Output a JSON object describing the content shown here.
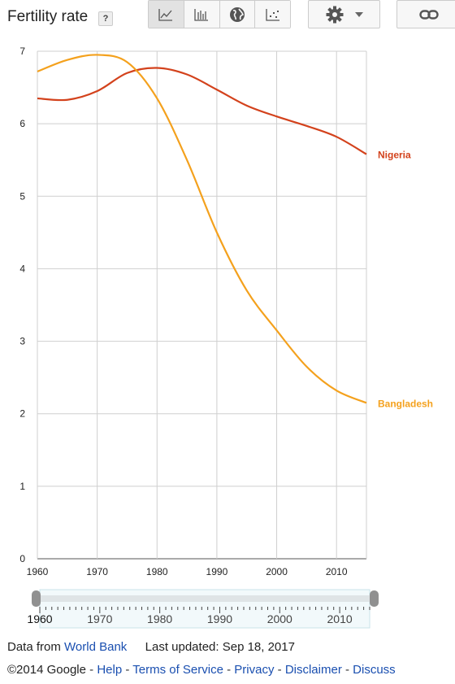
{
  "header": {
    "title": "Fertility rate",
    "help_label": "?",
    "view_buttons": [
      {
        "icon": "line-chart-icon"
      },
      {
        "icon": "bar-chart-icon"
      },
      {
        "icon": "globe-map-icon"
      },
      {
        "icon": "scatter-chart-icon"
      }
    ],
    "settings_icon": "gear-icon",
    "dropdown_icon": "caret-down-icon",
    "link_icon": "link-icon"
  },
  "chart_data": {
    "type": "line",
    "title": "Fertility rate",
    "xlim": [
      1960,
      2015
    ],
    "ylim": [
      0,
      7
    ],
    "x_ticks": [
      1960,
      1970,
      1980,
      1990,
      2000,
      2010
    ],
    "y_ticks": [
      0,
      1,
      2,
      3,
      4,
      5,
      6,
      7
    ],
    "grid": true,
    "legend": "end-of-line labels",
    "x": [
      1960,
      1965,
      1970,
      1975,
      1980,
      1985,
      1990,
      1995,
      2000,
      2005,
      2010,
      2015
    ],
    "series": [
      {
        "name": "Nigeria",
        "color": "#d3421c",
        "values": [
          6.35,
          6.33,
          6.45,
          6.7,
          6.77,
          6.68,
          6.47,
          6.25,
          6.1,
          5.97,
          5.82,
          5.58
        ]
      },
      {
        "name": "Bangladesh",
        "color": "#f4a11d",
        "values": [
          6.72,
          6.88,
          6.95,
          6.85,
          6.35,
          5.5,
          4.5,
          3.7,
          3.15,
          2.65,
          2.32,
          2.15
        ]
      }
    ]
  },
  "timeline": {
    "labels": [
      "1960",
      "1970",
      "1980",
      "1990",
      "2000",
      "2010"
    ],
    "range": [
      1960,
      2015
    ]
  },
  "footer": {
    "source_prefix": "Data from",
    "source_link": "World Bank",
    "updated": "Last updated: Sep 18, 2017",
    "copyright": "©2014 Google",
    "links": [
      "Help",
      "Terms of Service",
      "Privacy",
      "Disclaimer",
      "Discuss"
    ],
    "separator": " - "
  }
}
